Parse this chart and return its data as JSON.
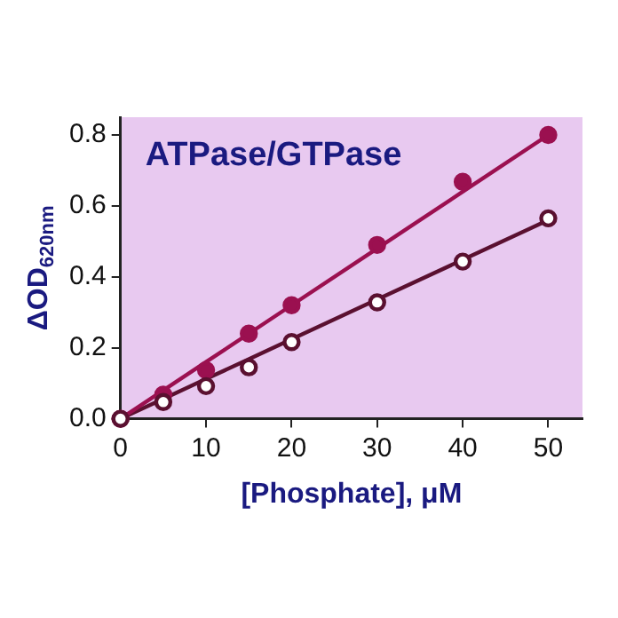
{
  "chart_data": {
    "type": "scatter",
    "title": "ATPase/GTPase",
    "xlabel": "[Phosphate], μM",
    "ylabel": "ΔOD$_{620nm}$",
    "x": [
      0,
      5,
      10,
      15,
      20,
      30,
      40,
      50
    ],
    "series": [
      {
        "color": "#9b1050",
        "marker": "circle",
        "values": [
          0,
          0.068,
          0.137,
          0.24,
          0.32,
          0.49,
          0.668,
          0.8
        ]
      },
      {
        "color": "#5a1030",
        "marker": "circle",
        "values": [
          0,
          0.047,
          0.092,
          0.145,
          0.216,
          0.328,
          0.443,
          0.565
        ]
      },
      {
        "type": "line",
        "color": "#9b1050",
        "marker": "none",
        "values": [
          0,
          0.08,
          0.16,
          0.24,
          0.32,
          0.48,
          0.64,
          0.8
        ]
      },
      {
        "type": "line",
        "color": "#5a1030",
        "marker": "none",
        "values": [
          0,
          0.056,
          0.112,
          0.168,
          0.224,
          0.336,
          0.448,
          0.56
        ]
      }
    ],
    "xlim": [
      0,
      54
    ],
    "ylim": [
      0,
      0.85
    ],
    "xticks": [
      0,
      10,
      20,
      30,
      40,
      50
    ],
    "yticks": [
      {
        "value": 0,
        "label": "0.0"
      },
      {
        "value": 0.2,
        "label": "0.2"
      },
      {
        "value": 0.4,
        "label": "0.4"
      },
      {
        "value": 0.6,
        "label": "0.6"
      },
      {
        "value": 0.8,
        "label": "0.8"
      }
    ],
    "grid": false,
    "legend": false
  }
}
